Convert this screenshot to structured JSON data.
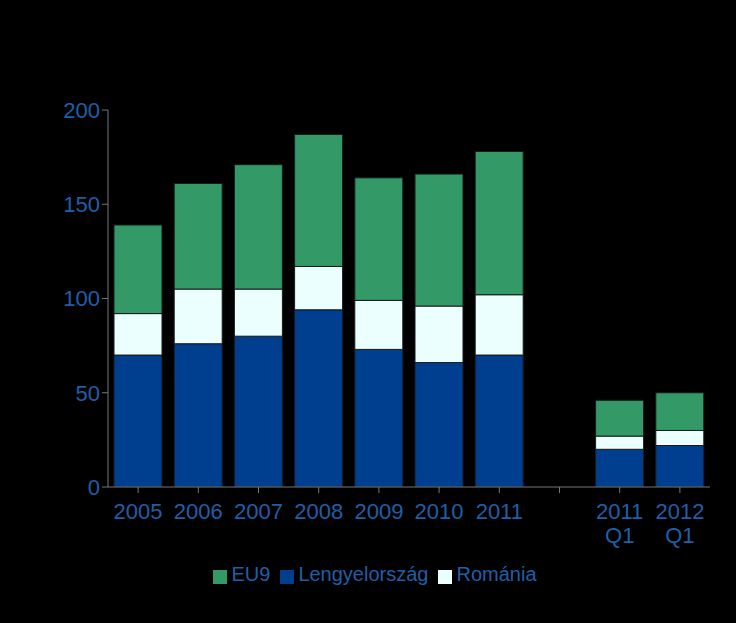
{
  "chart_data": {
    "type": "bar",
    "stacked": true,
    "legend": "bottom",
    "grid": false,
    "categories": [
      "2005",
      "2006",
      "2007",
      "2008",
      "2009",
      "2010",
      "2011",
      null,
      "2011 Q1",
      "2012 Q1"
    ],
    "series": [
      {
        "name": "Lengyelország",
        "color": "#003f8f",
        "values": [
          70,
          76,
          80,
          94,
          73,
          66,
          70,
          null,
          20,
          22
        ]
      },
      {
        "name": "Románia",
        "color": "#eafffe",
        "values": [
          22,
          29,
          25,
          23,
          26,
          30,
          32,
          null,
          7,
          8
        ]
      },
      {
        "name": "EU9",
        "color": "#339966",
        "values": [
          47,
          56,
          66,
          70,
          65,
          70,
          76,
          null,
          19,
          20
        ]
      }
    ],
    "ylim": [
      0,
      200
    ],
    "yticks": [
      0,
      50,
      100,
      150,
      200
    ]
  }
}
